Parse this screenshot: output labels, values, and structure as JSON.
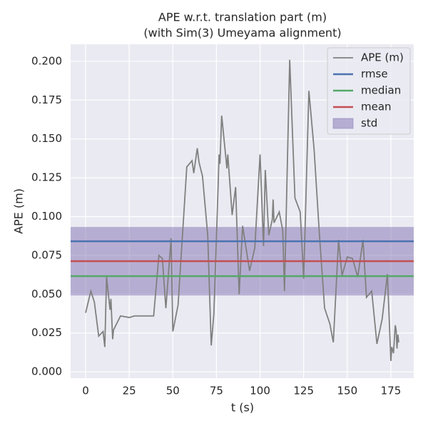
{
  "chart_data": {
    "type": "line",
    "title": "APE w.r.t. translation part (m)",
    "subtitle": "(with Sim(3) Umeyama alignment)",
    "xlabel": "t (s)",
    "ylabel": "APE (m)",
    "x": [
      0,
      3,
      5,
      7.5,
      10,
      11,
      12,
      14,
      14.5,
      15.5,
      16,
      20,
      25,
      28,
      31,
      34,
      39,
      42,
      44,
      46,
      49,
      50,
      53,
      58,
      61,
      62,
      64,
      65,
      67,
      70,
      72,
      73.5,
      74,
      76,
      76.5,
      77,
      78,
      81,
      81.5,
      84,
      86,
      88,
      90,
      94,
      97,
      100,
      102,
      103,
      105,
      107,
      107.5,
      108,
      111,
      113,
      114,
      117,
      120,
      123,
      125,
      128,
      131,
      134,
      137,
      140,
      142,
      145,
      147,
      150,
      153,
      156,
      159,
      161,
      164,
      167,
      170,
      173,
      175,
      175.5,
      176.5,
      177.5,
      178,
      178.5,
      179,
      179.5
    ],
    "series": [
      {
        "name": "APE (m)",
        "color": "#808080",
        "values": [
          0.038,
          0.052,
          0.045,
          0.023,
          0.026,
          0.016,
          0.061,
          0.04,
          0.047,
          0.021,
          0.027,
          0.036,
          0.035,
          0.036,
          0.036,
          0.036,
          0.036,
          0.075,
          0.073,
          0.041,
          0.086,
          0.026,
          0.043,
          0.132,
          0.136,
          0.128,
          0.144,
          0.135,
          0.126,
          0.088,
          0.017,
          0.037,
          0.053,
          0.121,
          0.14,
          0.134,
          0.165,
          0.131,
          0.14,
          0.101,
          0.119,
          0.05,
          0.094,
          0.065,
          0.08,
          0.14,
          0.081,
          0.13,
          0.088,
          0.098,
          0.111,
          0.096,
          0.103,
          0.091,
          0.052,
          0.201,
          0.112,
          0.103,
          0.06,
          0.181,
          0.143,
          0.089,
          0.041,
          0.031,
          0.019,
          0.085,
          0.062,
          0.074,
          0.073,
          0.061,
          0.085,
          0.048,
          0.052,
          0.018,
          0.034,
          0.063,
          0.007,
          0.016,
          0.012,
          0.03,
          0.027,
          0.015,
          0.024,
          0.019
        ]
      }
    ],
    "stats": [
      {
        "name": "rmse",
        "color": "#4c72b0",
        "value": 0.0841
      },
      {
        "name": "median",
        "color": "#55a868",
        "value": 0.0616
      },
      {
        "name": "mean",
        "color": "#c44e52",
        "value": 0.0713
      }
    ],
    "std": {
      "name": "std",
      "color": "#8172b2",
      "lower": 0.0492,
      "upper": 0.0933
    },
    "xlim": [
      -8.6,
      188.1
    ],
    "ylim": [
      -0.0041,
      0.211
    ],
    "xticks": [
      0,
      25,
      50,
      75,
      100,
      125,
      150,
      175
    ],
    "yticks": [
      {
        "value": 0,
        "label": "0.000"
      },
      0.025,
      {
        "value": 0.05,
        "label": "0.050"
      },
      0.075,
      {
        "value": 0.1,
        "label": "0.100"
      },
      0.125,
      {
        "value": 0.15,
        "label": "0.150"
      },
      0.175,
      {
        "value": 0.2,
        "label": "0.200"
      }
    ],
    "grid": true,
    "legend": "upper right"
  }
}
